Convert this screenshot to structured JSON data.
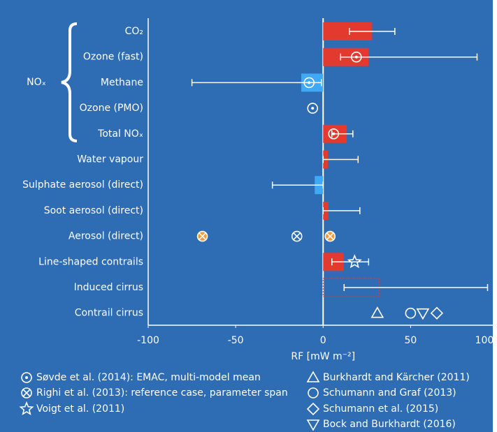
{
  "chart_data": {
    "type": "bar",
    "orientation": "horizontal",
    "categories": [
      "CO₂",
      "Ozone (fast)",
      "Methane",
      "Ozone (PMO)",
      "Total NOₓ",
      "Water vapour",
      "Sulphate aerosol (direct)",
      "Soot aerosol (direct)",
      "Aerosol (direct)",
      "Line-shaped contrails",
      "Induced cirrus",
      "Contrail cirrus"
    ],
    "group_label": "NOₓ",
    "bars": {
      "values": [
        28,
        26,
        -12.5,
        null,
        13.5,
        2.8,
        -4.8,
        3,
        null,
        11.8,
        32,
        null
      ],
      "error_low": [
        15,
        10,
        -75,
        null,
        5,
        0,
        -29,
        0,
        null,
        5,
        12,
        null
      ],
      "error_high": [
        41,
        88,
        -1,
        null,
        17,
        20,
        0,
        21,
        null,
        26,
        94,
        null
      ],
      "bar_style": [
        "solid",
        "solid",
        "solid",
        null,
        "solid",
        "solid",
        "solid",
        "solid",
        null,
        "solid",
        "dashed",
        null
      ],
      "positive_color": "#e23a2e",
      "negative_color": "#3fa9f5"
    },
    "markers": [
      {
        "name": "Søvde et al. (2014): EMAC, multi-model mean",
        "symbol": "circle-dot",
        "color": "#ffffff",
        "values": [
          null,
          19,
          -8,
          -6,
          6,
          null,
          null,
          null,
          null,
          null,
          null,
          null
        ]
      },
      {
        "name": "Righi et al. (2013): reference case, parameter span",
        "symbol": "circle-cross",
        "color": "#ffffff",
        "values": [
          null,
          null,
          null,
          null,
          null,
          null,
          null,
          null,
          [
            -69,
            -15,
            4
          ],
          null,
          null,
          null
        ],
        "fills": [
          null,
          null,
          null,
          null,
          null,
          null,
          null,
          null,
          [
            "#f39a3d",
            "none",
            "#f39a3d"
          ],
          null,
          null,
          null
        ]
      },
      {
        "name": "Voigt et al. (2011)",
        "symbol": "star",
        "color": "#ffffff",
        "values": [
          null,
          null,
          null,
          null,
          null,
          null,
          null,
          null,
          null,
          18,
          null,
          null
        ]
      },
      {
        "name": "Burkhardt and Kärcher (2011)",
        "symbol": "triangle-up",
        "color": "#ffffff",
        "values": [
          null,
          null,
          null,
          null,
          null,
          null,
          null,
          null,
          null,
          null,
          null,
          31
        ]
      },
      {
        "name": "Schumann and Graf (2013)",
        "symbol": "circle",
        "color": "#ffffff",
        "values": [
          null,
          null,
          null,
          null,
          null,
          null,
          null,
          null,
          null,
          null,
          null,
          50
        ]
      },
      {
        "name": "Schumann et al. (2015)",
        "symbol": "diamond",
        "color": "#ffffff",
        "values": [
          null,
          null,
          null,
          null,
          null,
          null,
          null,
          null,
          null,
          null,
          null,
          65
        ]
      },
      {
        "name": "Bock and Burkhardt (2016)",
        "symbol": "triangle-down",
        "color": "#ffffff",
        "values": [
          null,
          null,
          null,
          null,
          null,
          null,
          null,
          null,
          null,
          null,
          null,
          57
        ]
      }
    ],
    "x_label": "RF [mW m⁻²]",
    "xlim": [
      -100,
      97
    ],
    "xticks": [
      -100,
      -50,
      0,
      50,
      100
    ],
    "background": "#2e6cb4"
  }
}
